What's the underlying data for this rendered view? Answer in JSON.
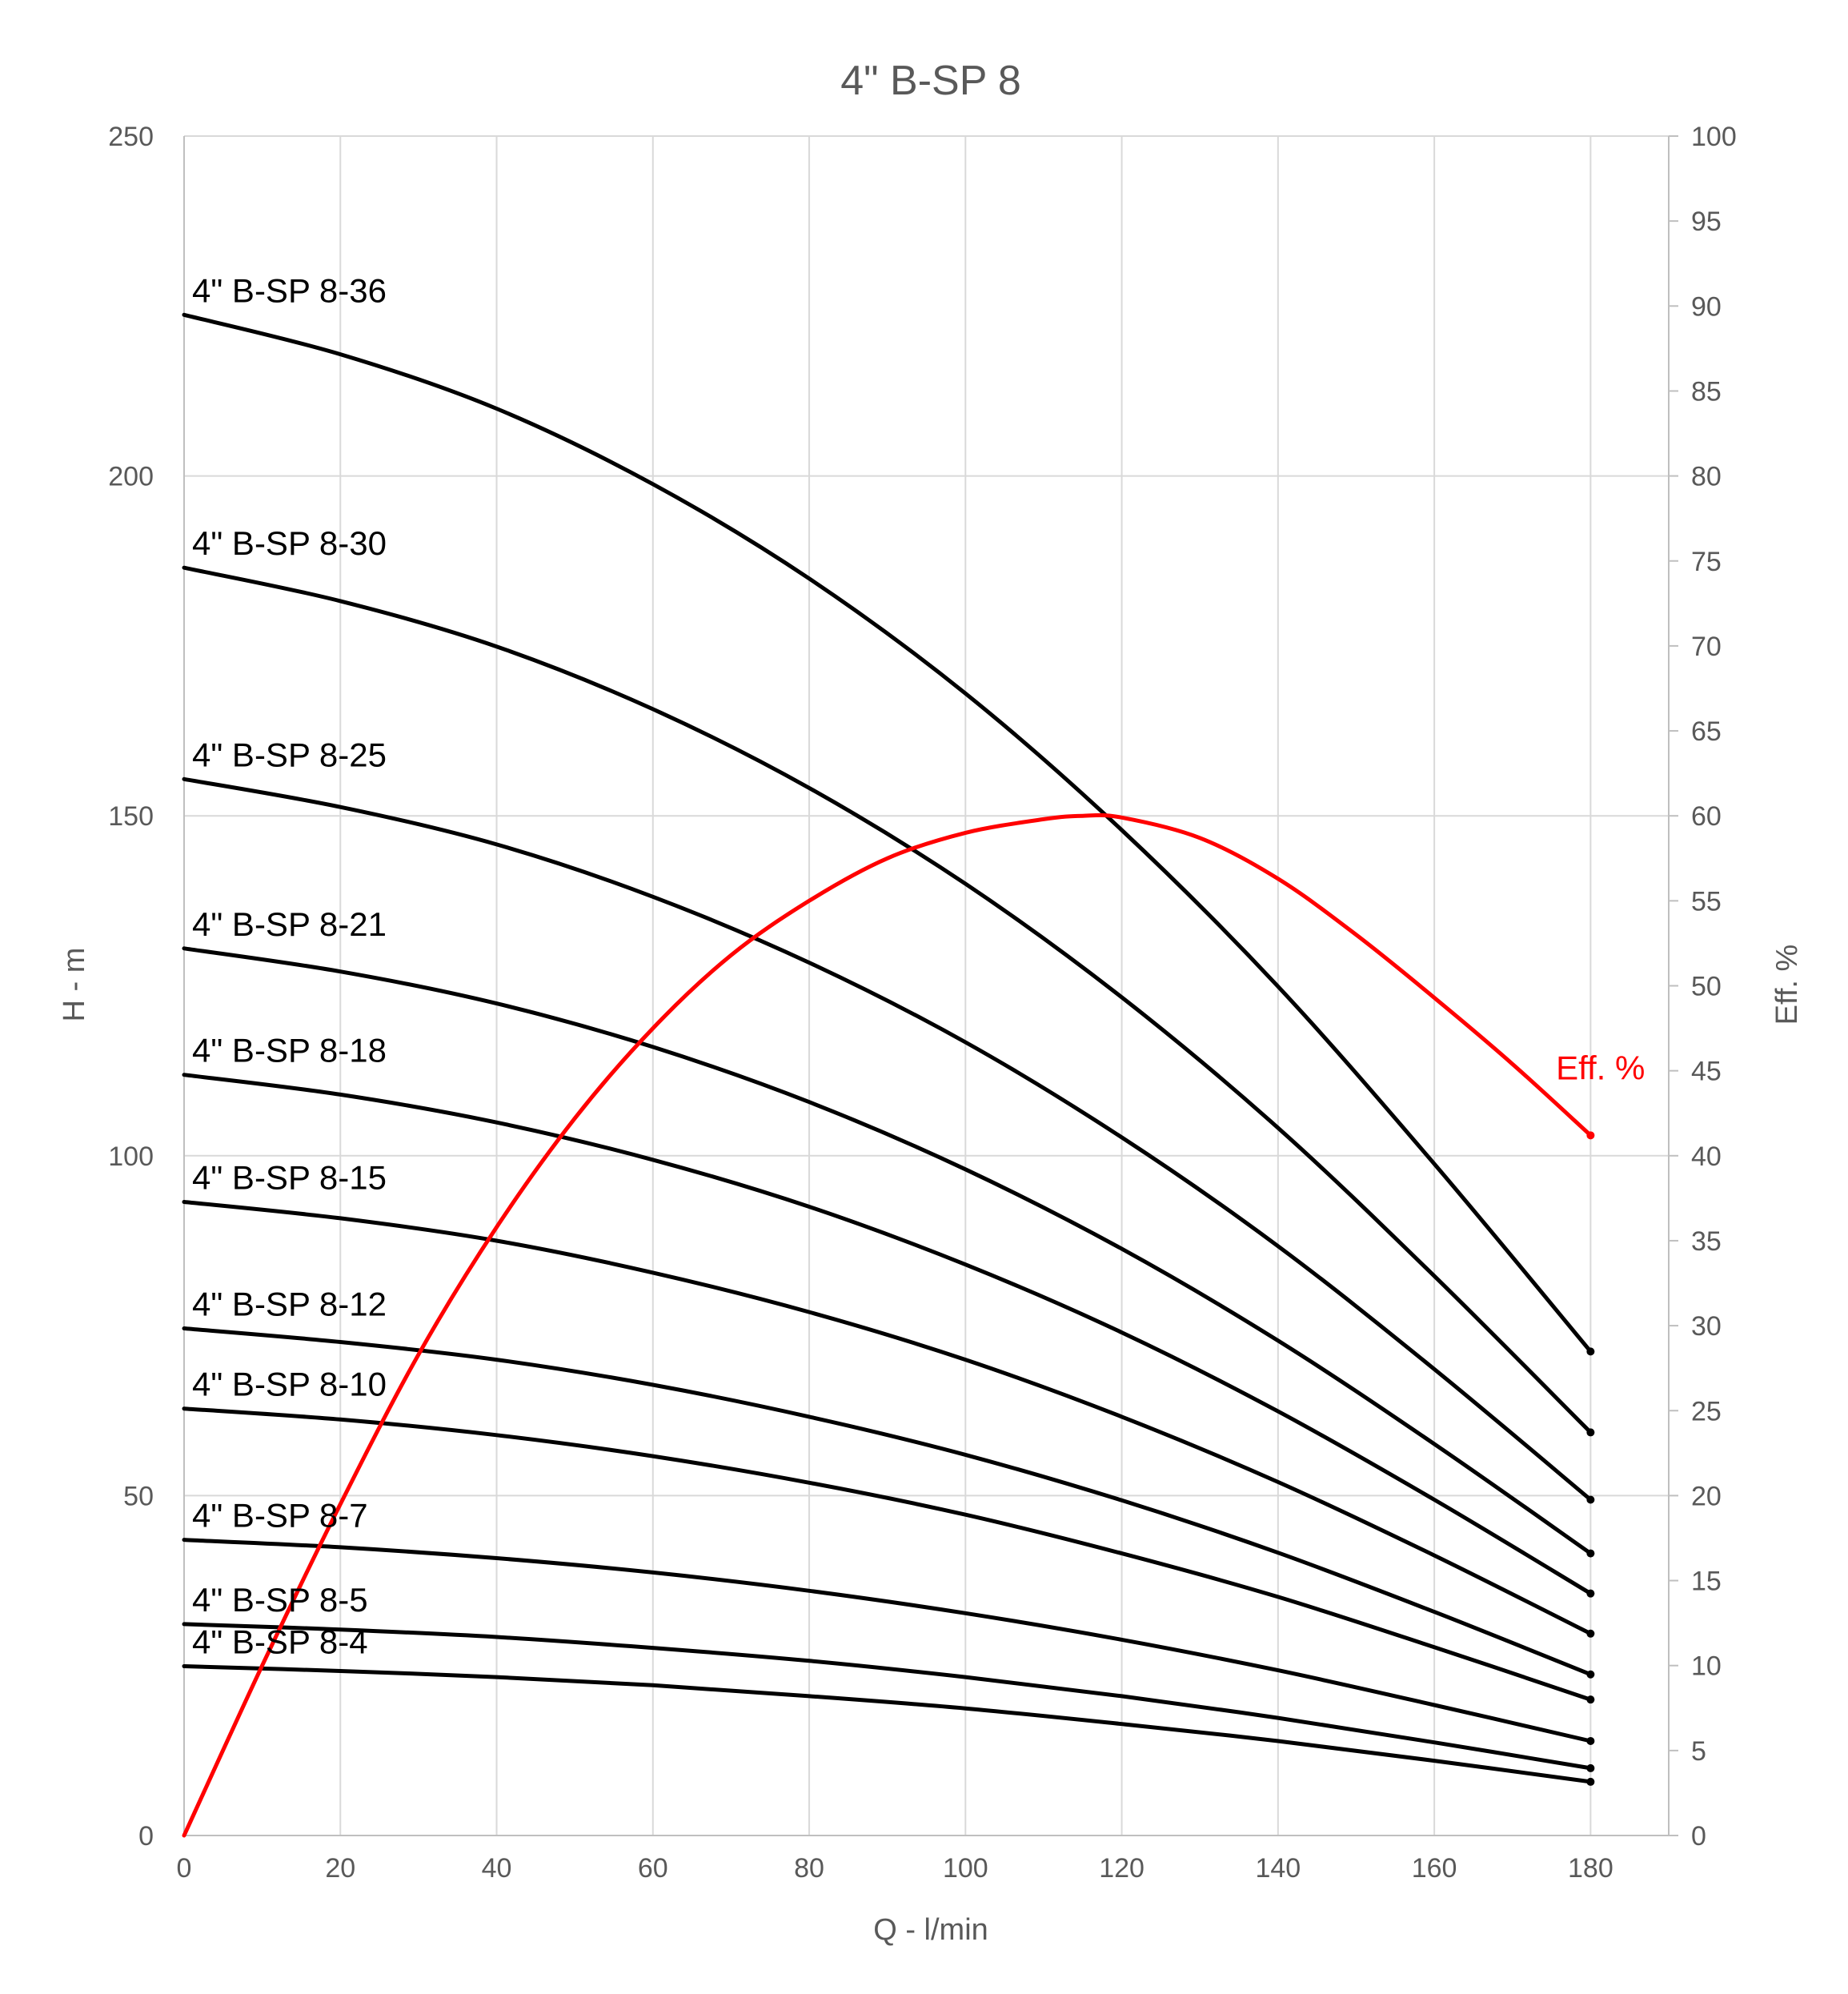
{
  "chart_data": {
    "type": "line",
    "title": "4\" B-SP 8",
    "xlabel": "Q - l/min",
    "ylabel": "H - m",
    "y2label": "Eff. %",
    "xlim": [
      0,
      190
    ],
    "ylim": [
      0,
      250
    ],
    "y2lim": [
      0,
      100
    ],
    "xticks": [
      0,
      20,
      40,
      60,
      80,
      100,
      120,
      140,
      160,
      180
    ],
    "yticks": [
      0,
      50,
      100,
      150,
      200,
      250
    ],
    "y2ticks": [
      0,
      5,
      10,
      15,
      20,
      25,
      30,
      35,
      40,
      45,
      50,
      55,
      60,
      65,
      70,
      75,
      80,
      85,
      90,
      95,
      100
    ],
    "grid": true,
    "x": [
      0,
      20,
      40,
      60,
      80,
      100,
      120,
      140,
      160,
      180
    ],
    "series": [
      {
        "name": "4\" B-SP 8-36",
        "axis": "left",
        "color": "#000000",
        "values": [
          223.7,
          217.9,
          209.9,
          198.8,
          184.9,
          168.0,
          147.9,
          124.9,
          98.8,
          71.2
        ]
      },
      {
        "name": "4\" B-SP 8-30",
        "axis": "left",
        "color": "#000000",
        "values": [
          186.5,
          181.6,
          174.9,
          165.7,
          154.1,
          140.0,
          123.3,
          104.1,
          82.3,
          59.3
        ]
      },
      {
        "name": "4\" B-SP 8-25",
        "axis": "left",
        "color": "#000000",
        "values": [
          155.4,
          151.3,
          145.8,
          138.1,
          128.4,
          116.7,
          102.7,
          86.7,
          68.6,
          49.4
        ]
      },
      {
        "name": "4\" B-SP 8-21",
        "axis": "left",
        "color": "#000000",
        "values": [
          130.5,
          127.1,
          122.4,
          116.0,
          107.9,
          98.0,
          86.3,
          72.8,
          57.6,
          41.5
        ]
      },
      {
        "name": "4\" B-SP 8-18",
        "axis": "left",
        "color": "#000000",
        "values": [
          111.9,
          109.0,
          104.9,
          99.4,
          92.5,
          84.0,
          74.0,
          62.4,
          49.4,
          35.6
        ]
      },
      {
        "name": "4\" B-SP 8-15",
        "axis": "left",
        "color": "#000000",
        "values": [
          93.2,
          90.8,
          87.5,
          82.8,
          77.0,
          70.0,
          61.6,
          52.0,
          41.2,
          29.7
        ]
      },
      {
        "name": "4\" B-SP 8-12",
        "axis": "left",
        "color": "#000000",
        "values": [
          74.6,
          72.6,
          70.0,
          66.3,
          61.6,
          56.0,
          49.3,
          41.6,
          32.9,
          23.7
        ]
      },
      {
        "name": "4\" B-SP 8-10",
        "axis": "left",
        "color": "#000000",
        "values": [
          62.8,
          61.2,
          58.9,
          55.8,
          51.9,
          47.2,
          41.5,
          35.1,
          27.7,
          20.0
        ]
      },
      {
        "name": "4\" B-SP 8-7",
        "axis": "left",
        "color": "#000000",
        "values": [
          43.5,
          42.4,
          40.8,
          38.7,
          36.0,
          32.7,
          28.8,
          24.3,
          19.2,
          13.9
        ]
      },
      {
        "name": "4\" B-SP 8-5",
        "axis": "left",
        "color": "#000000",
        "values": [
          31.1,
          30.3,
          29.2,
          27.6,
          25.7,
          23.3,
          20.5,
          17.3,
          13.7,
          9.9
        ]
      },
      {
        "name": "4\" B-SP 8-4",
        "axis": "left",
        "color": "#000000",
        "values": [
          24.9,
          24.2,
          23.3,
          22.1,
          20.5,
          18.7,
          16.4,
          13.9,
          11.0,
          7.9
        ]
      }
    ],
    "efficiency": {
      "name": "Eff. %",
      "axis": "right",
      "color": "#ff0000",
      "x": [
        0,
        10,
        20,
        30,
        40,
        50,
        60,
        70,
        80,
        90,
        100,
        110,
        115,
        120,
        130,
        140,
        150,
        160,
        170,
        180
      ],
      "values": [
        0,
        10,
        19.5,
        28.3,
        35.8,
        42.2,
        47.5,
        51.8,
        55.0,
        57.5,
        59.0,
        59.8,
        60.0,
        59.9,
        58.7,
        56.3,
        53.0,
        49.3,
        45.4,
        41.2
      ]
    }
  }
}
